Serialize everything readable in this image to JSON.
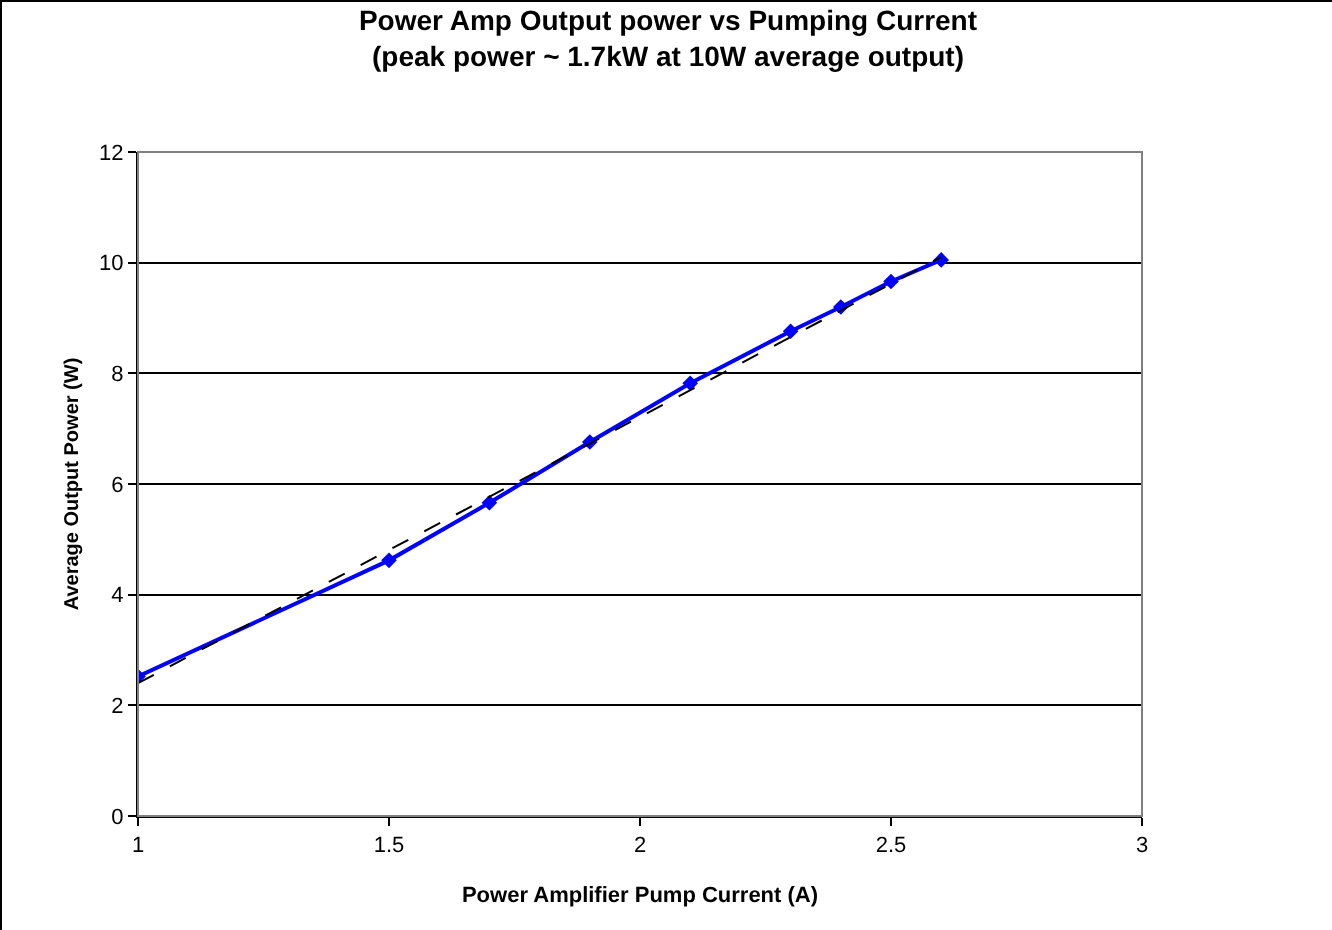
{
  "chart_data": {
    "type": "line",
    "title": "Power Amp Output power vs Pumping Current",
    "subtitle": "(peak power ~ 1.7kW at 10W average output)",
    "xlabel": "Power Amplifier Pump Current (A)",
    "ylabel": "Average Output Power (W)",
    "xlim": [
      1,
      3
    ],
    "xticks": [
      1,
      1.5,
      2,
      2.5,
      3
    ],
    "ylim": [
      0,
      12
    ],
    "yticks": [
      0,
      2,
      4,
      6,
      8,
      10,
      12
    ],
    "grid": "y",
    "series": [
      {
        "color": "#0000ff",
        "x": [
          1,
          1.5,
          1.7,
          1.9,
          2.1,
          2.3,
          2.4,
          2.5,
          2.6
        ],
        "values": [
          2.52,
          4.62,
          5.66,
          6.76,
          7.82,
          8.76,
          9.2,
          9.66,
          10.05
        ],
        "marker": "diamond",
        "line_style": "solid"
      },
      {
        "type": "line",
        "color": "#000000",
        "x": [
          1,
          2.6
        ],
        "values": [
          2.4,
          10.1
        ],
        "marker": "none",
        "line_style": "dashed"
      }
    ]
  }
}
